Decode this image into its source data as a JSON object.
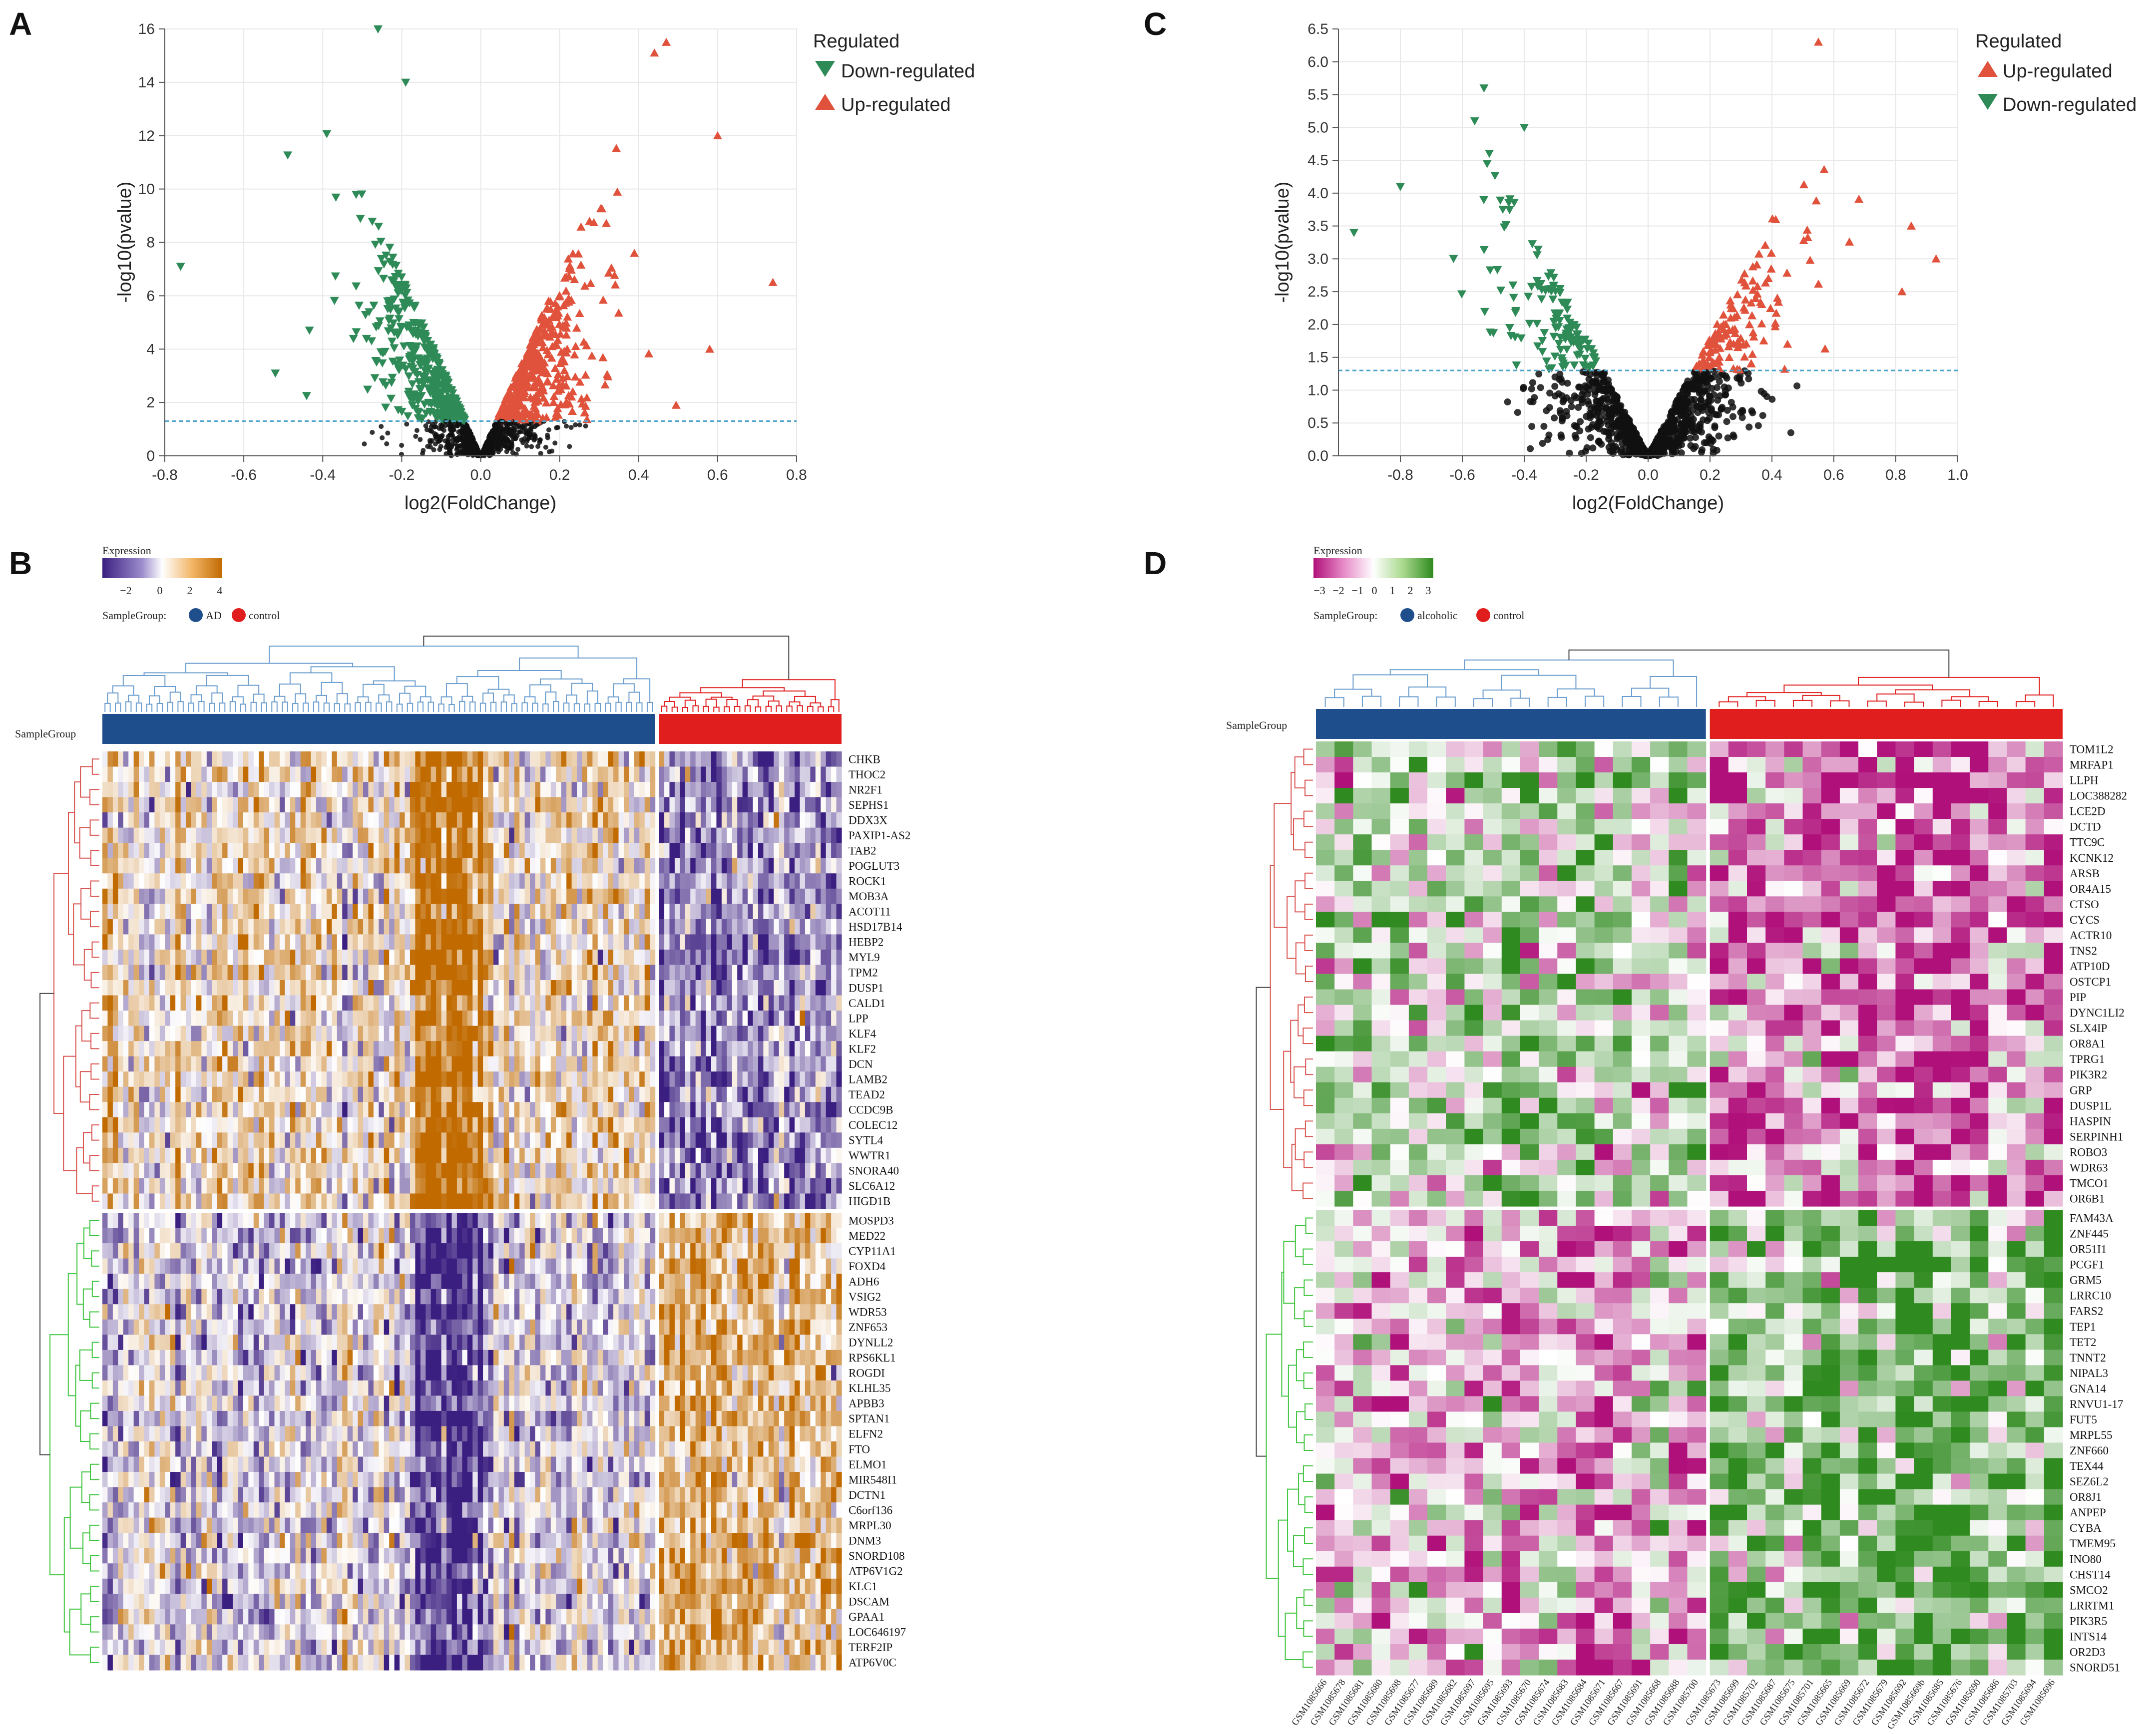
{
  "panels": {
    "A": "A",
    "B": "B",
    "C": "C",
    "D": "D"
  },
  "colors": {
    "down": "#2e8b57",
    "up": "#e0523c",
    "ns": "#111111",
    "threshold": "#4aa3c8",
    "ad": "#1f4e8c",
    "ctrl": "#e01e1e",
    "rowRed": "#d9534f",
    "rowGreen": "#3cc43c",
    "dendroBlue": "#6a9ccd"
  },
  "chart_data": [
    {
      "type": "scatter",
      "name": "volcano-AD",
      "xlabel": "log2(FoldChange)",
      "ylabel": "-log10(pvalue)",
      "xlim": [
        -0.8,
        0.8
      ],
      "ylim": [
        0,
        16
      ],
      "xticks": [
        "-0.8",
        "-0.6",
        "-0.4",
        "-0.2",
        "0.0",
        "0.2",
        "0.4",
        "0.6",
        "0.8"
      ],
      "yticks": [
        "0",
        "2",
        "4",
        "6",
        "8",
        "10",
        "12",
        "14",
        "16"
      ],
      "threshold": 1.3,
      "legend": {
        "title": "Regulated",
        "items": [
          {
            "label": "Down-regulated",
            "key": "down",
            "shape": "down"
          },
          {
            "label": "Up-regulated",
            "key": "up",
            "shape": "up"
          }
        ]
      },
      "highlight_points": [
        {
          "x": -0.26,
          "y": 16,
          "g": "down"
        },
        {
          "x": -0.19,
          "y": 14,
          "g": "down"
        },
        {
          "x": -0.76,
          "y": 7.1,
          "g": "down"
        },
        {
          "x": -0.52,
          "y": 3.1,
          "g": "down"
        },
        {
          "x": 0.47,
          "y": 15.5,
          "g": "up"
        },
        {
          "x": 0.6,
          "y": 12,
          "g": "up"
        },
        {
          "x": 0.74,
          "y": 6.5,
          "g": "up"
        },
        {
          "x": 0.58,
          "y": 4,
          "g": "up"
        },
        {
          "x": 0.44,
          "y": 15.1,
          "g": "up"
        }
      ]
    },
    {
      "type": "scatter",
      "name": "volcano-alcoholic",
      "xlabel": "log2(FoldChange)",
      "ylabel": "-log10(pvalue)",
      "xlim": [
        -1.0,
        1.0
      ],
      "ylim": [
        0,
        6.5
      ],
      "xticks": [
        "-0.8",
        "-0.6",
        "-0.4",
        "-0.2",
        "0.0",
        "0.2",
        "0.4",
        "0.6",
        "0.8",
        "1.0"
      ],
      "yticks": [
        "0.0",
        "0.5",
        "1.0",
        "1.5",
        "2.0",
        "2.5",
        "3.0",
        "3.5",
        "4.0",
        "4.5",
        "5.0",
        "5.5",
        "6.0",
        "6.5"
      ],
      "threshold": 1.3,
      "legend": {
        "title": "Regulated",
        "items": [
          {
            "label": "Up-regulated",
            "key": "up",
            "shape": "up"
          },
          {
            "label": "Down-regulated",
            "key": "down",
            "shape": "down"
          }
        ]
      },
      "highlight_points": [
        {
          "x": -0.95,
          "y": 3.4,
          "g": "down"
        },
        {
          "x": -0.8,
          "y": 4.1,
          "g": "down"
        },
        {
          "x": -0.53,
          "y": 5.6,
          "g": "down"
        },
        {
          "x": -0.56,
          "y": 5.1,
          "g": "down"
        },
        {
          "x": -0.4,
          "y": 5.0,
          "g": "down"
        },
        {
          "x": 0.55,
          "y": 6.3,
          "g": "up"
        },
        {
          "x": 0.85,
          "y": 3.5,
          "g": "up"
        },
        {
          "x": 0.93,
          "y": 3.0,
          "g": "up"
        },
        {
          "x": 0.82,
          "y": 2.5,
          "g": "up"
        }
      ]
    },
    {
      "type": "heatmap",
      "name": "heatmap-AD",
      "legend_title": "Expression",
      "scale_ticks": [
        "−2",
        "0",
        "2",
        "4"
      ],
      "sample_group_label": "SampleGroup:",
      "group_title": "SampleGroup",
      "groups": [
        {
          "label": "AD",
          "key": "ad"
        },
        {
          "label": "control",
          "key": "ctrl"
        }
      ],
      "n_samples": [
        106,
        35
      ],
      "palette": {
        "low": "#3b1f80",
        "mid": "#ffffff",
        "high": "#c06a00"
      },
      "genes_up": [
        "CHKB",
        "THOC2",
        "NR2F1",
        "SEPHS1",
        "DDX3X",
        "PAXIP1-AS2",
        "TAB2",
        "POGLUT3",
        "ROCK1",
        "MOB3A",
        "ACOT11",
        "HSD17B14",
        "HEBP2",
        "MYL9",
        "TPM2",
        "DUSP1",
        "CALD1",
        "LPP",
        "KLF4",
        "KLF2",
        "DCN",
        "LAMB2",
        "TEAD2",
        "CCDC9B",
        "COLEC12",
        "SYTL4",
        "WWTR1",
        "SNORA40",
        "SLC6A12",
        "HIGD1B"
      ],
      "genes_down": [
        "MOSPD3",
        "MED22",
        "CYP11A1",
        "FOXD4",
        "ADH6",
        "VSIG2",
        "WDR53",
        "ZNF653",
        "DYNLL2",
        "RPS6KL1",
        "ROGDI",
        "KLHL35",
        "APBB3",
        "SPTAN1",
        "ELFN2",
        "FTO",
        "ELMO1",
        "MIR548I1",
        "DCTN1",
        "C6orf136",
        "MRPL30",
        "DNM3",
        "SNORD108",
        "ATP6V1G2",
        "KLC1",
        "DSCAM",
        "GPAA1",
        "LOC646197",
        "TERF2IP",
        "ATP6V0C"
      ]
    },
    {
      "type": "heatmap",
      "name": "heatmap-alcoholic",
      "legend_title": "Expression",
      "scale_ticks": [
        "−3",
        "−2",
        "−1",
        "0",
        "1",
        "2",
        "3"
      ],
      "sample_group_label": "SampleGroup:",
      "group_title": "SampleGroup",
      "groups": [
        {
          "label": "alcoholic",
          "key": "ad"
        },
        {
          "label": "control",
          "key": "ctrl"
        }
      ],
      "palette": {
        "low": "#b0107a",
        "mid": "#ffffff",
        "high": "#2f8a1f"
      },
      "samples_alcoholic": [
        "GSM1085666",
        "GSM1085678",
        "GSM1085681",
        "GSM1085680",
        "GSM1085698",
        "GSM1085677",
        "GSM1085689",
        "GSM1085682",
        "GSM1085697",
        "GSM1085695",
        "GSM1085693",
        "GSM1085670",
        "GSM1085674",
        "GSM1085683",
        "GSM1085684",
        "GSM1085671",
        "GSM1085667",
        "GSM1085691",
        "GSM1085668",
        "GSM1085688",
        "GSM1085700"
      ],
      "samples_control": [
        "GSM1085673",
        "GSM1085699",
        "GSM1085702",
        "GSM1085687",
        "GSM1085675",
        "GSM1085701",
        "GSM1085665",
        "GSM1085669",
        "GSM1085672",
        "GSM1085679",
        "GSM1085692",
        "GSM1085669b",
        "GSM1085685",
        "GSM1085676",
        "GSM1085690",
        "GSM1085686",
        "GSM1085703",
        "GSM1085694",
        "GSM1085696"
      ],
      "genes_up": [
        "TOM1L2",
        "MRFAP1",
        "LLPH",
        "LOC388282",
        "LCE2D",
        "DCTD",
        "TTC9C",
        "KCNK12",
        "ARSB",
        "OR4A15",
        "CTSO",
        "CYCS",
        "ACTR10",
        "TNS2",
        "ATP10D",
        "OSTCP1",
        "PIP",
        "DYNC1LI2",
        "SLX4IP",
        "OR8A1",
        "TPRG1",
        "PIK3R2",
        "GRP",
        "DUSP1L",
        "HASPIN",
        "SERPINH1",
        "ROBO3",
        "WDR63",
        "TMCO1",
        "OR6B1"
      ],
      "genes_down": [
        "FAM43A",
        "ZNF445",
        "OR51I1",
        "PCGF1",
        "GRM5",
        "LRRC10",
        "FARS2",
        "TEP1",
        "TET2",
        "TNNT2",
        "NIPAL3",
        "GNA14",
        "RNVU1-17",
        "FUT5",
        "MRPL55",
        "ZNF660",
        "TEX44",
        "SEZ6L2",
        "OR8J1",
        "ANPEP",
        "CYBA",
        "TMEM95",
        "INO80",
        "CHST14",
        "SMCO2",
        "LRRTM1",
        "PIK3R5",
        "INTS14",
        "OR2D3",
        "SNORD51"
      ]
    }
  ]
}
